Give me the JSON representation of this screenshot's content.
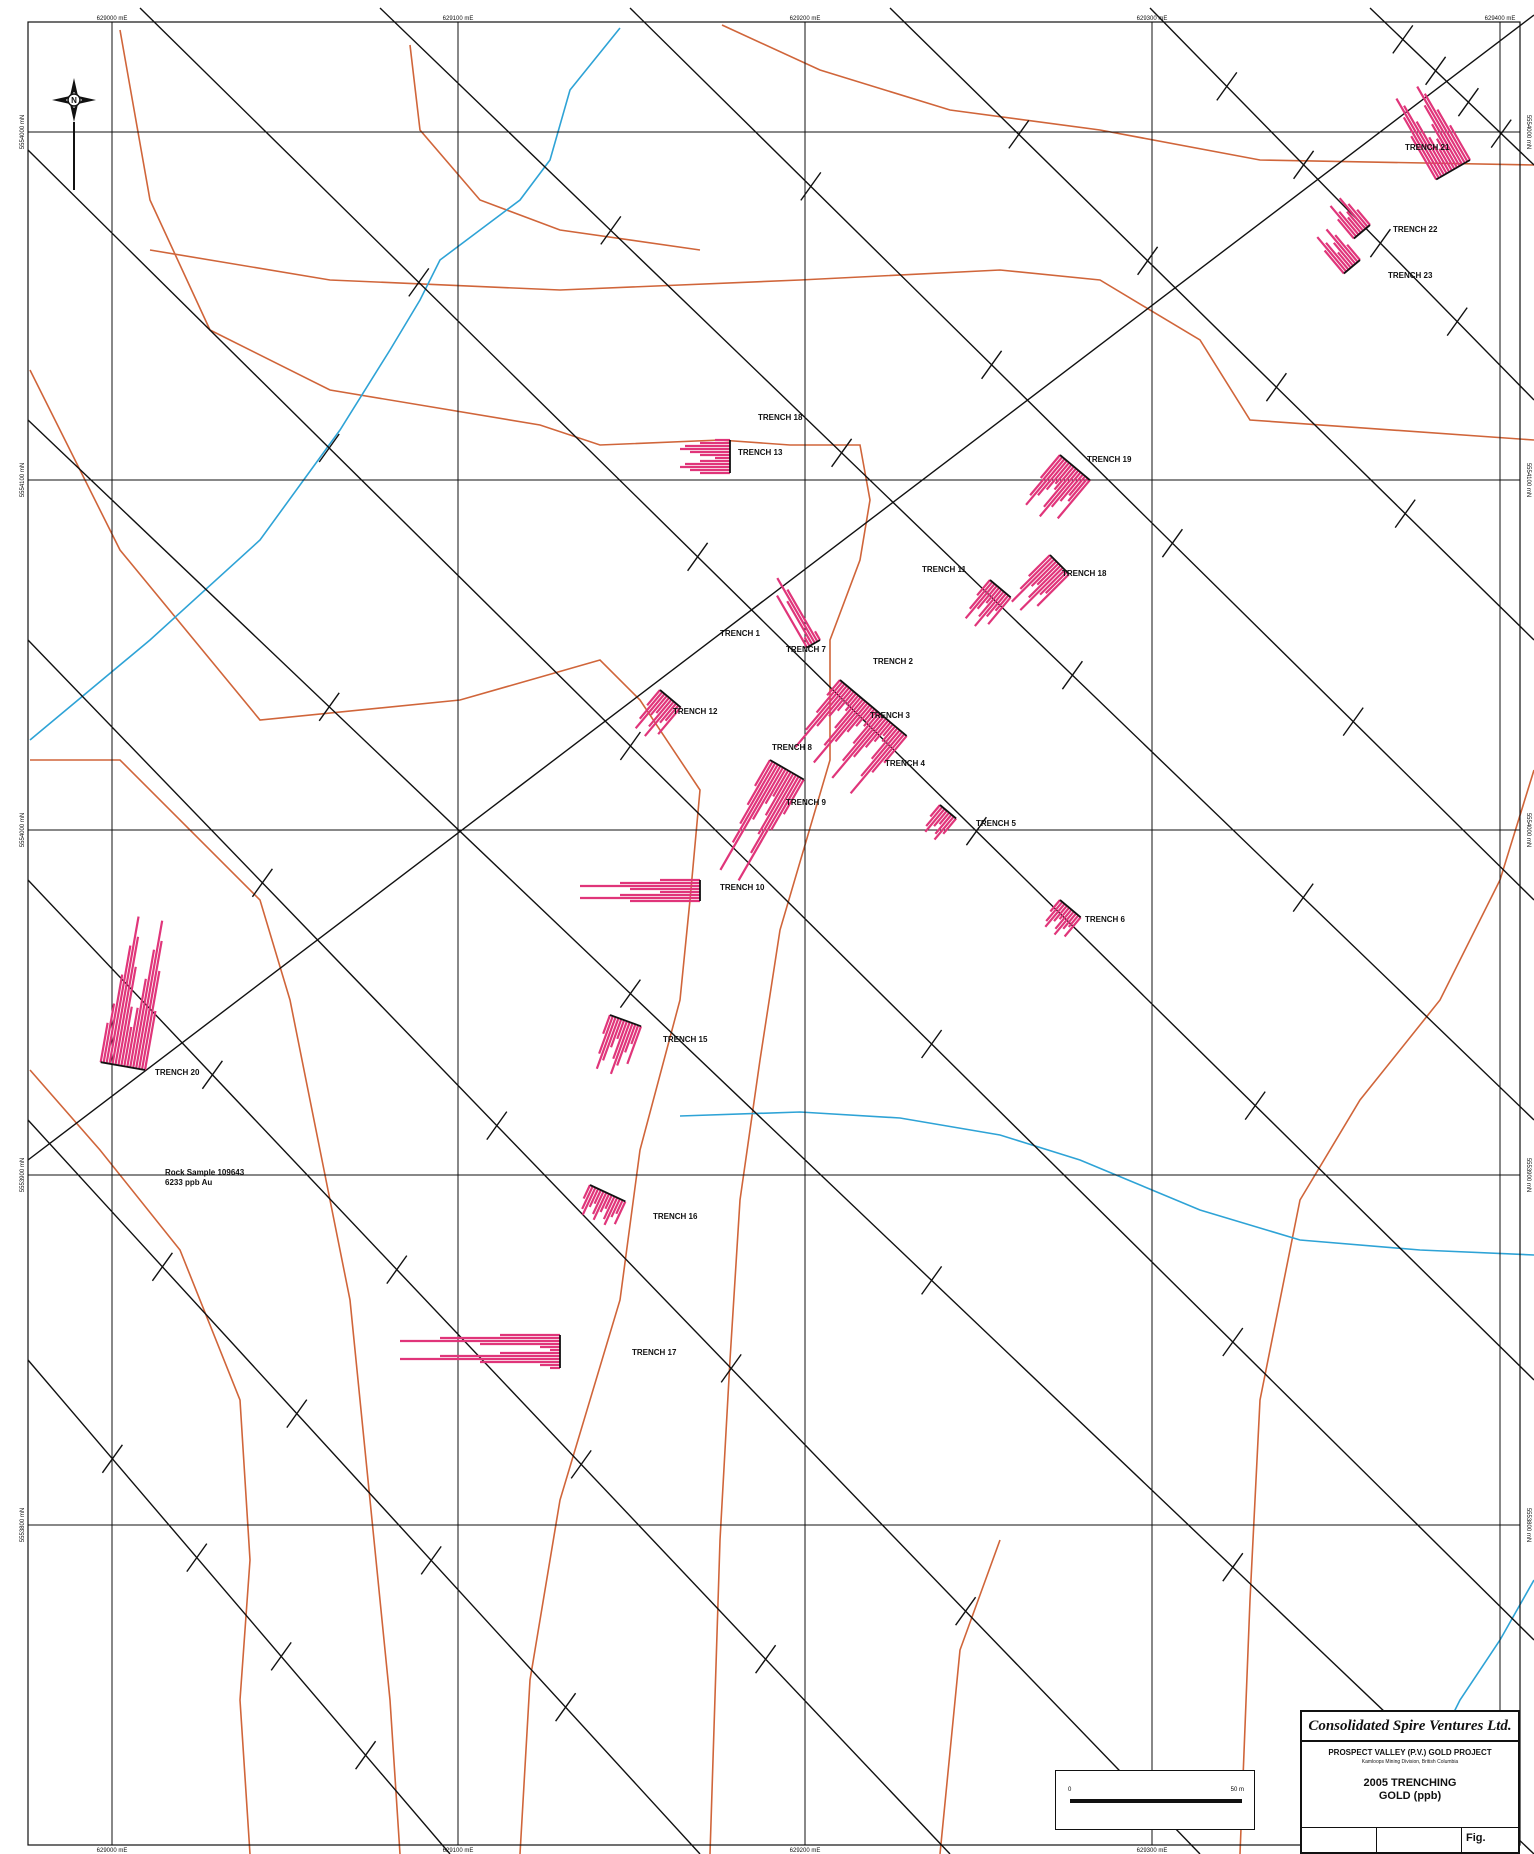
{
  "map": {
    "easting_labels": [
      "629000 mE",
      "629100 mE",
      "629200 mE",
      "629300 mE",
      "629400 mE"
    ],
    "northing_labels": [
      "5554000 mN",
      "5554100 mN",
      "5554000 mN",
      "5553900 mN",
      "5553800 mN"
    ],
    "trenches": [
      {
        "label": "TRENCH 21"
      },
      {
        "label": "TRENCH 22"
      },
      {
        "label": "TRENCH 23"
      },
      {
        "label": "TRENCH 18"
      },
      {
        "label": "TRENCH 13"
      },
      {
        "label": "TRENCH 19"
      },
      {
        "label": "TRENCH 11"
      },
      {
        "label": "TRENCH 18"
      },
      {
        "label": "TRENCH 1"
      },
      {
        "label": "TRENCH 7"
      },
      {
        "label": "TRENCH 2"
      },
      {
        "label": "TRENCH 12"
      },
      {
        "label": "TRENCH 3"
      },
      {
        "label": "TRENCH 8"
      },
      {
        "label": "TRENCH 4"
      },
      {
        "label": "TRENCH 9"
      },
      {
        "label": "TRENCH 5"
      },
      {
        "label": "TRENCH 10"
      },
      {
        "label": "TRENCH 6"
      },
      {
        "label": "TRENCH 15"
      },
      {
        "label": "TRENCH 20"
      },
      {
        "label": "TRENCH 16"
      },
      {
        "label": "TRENCH 17"
      }
    ],
    "rock_sample": {
      "line1": "Rock Sample 109643",
      "line2": "6233 ppb Au"
    },
    "colors": {
      "grid": "#111111",
      "contour": "#d0653a",
      "creek": "#2ea3d6",
      "gold_bars": "#e0357a"
    }
  },
  "title_block": {
    "company": "Consolidated Spire Ventures Ltd.",
    "project": "PROSPECT VALLEY (P.V.) GOLD PROJECT",
    "subtitle": "Kamloops Mining Division, British Columbia",
    "title_line1": "2005 TRENCHING",
    "title_line2": "GOLD (ppb)",
    "fig_label": "Fig."
  },
  "scale": {
    "zero": "0",
    "end": "50 m"
  }
}
